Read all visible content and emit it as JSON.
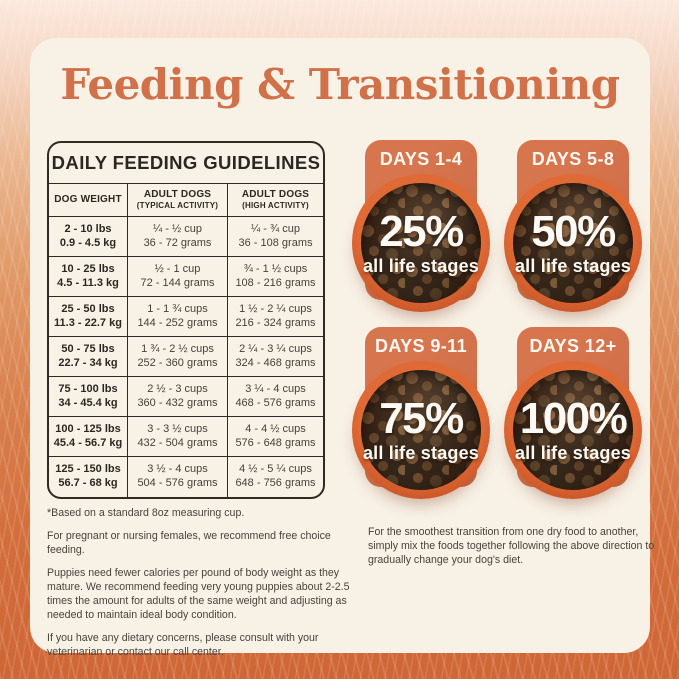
{
  "title": "Feeding & Transitioning",
  "colors": {
    "accent_title": "#d0714a",
    "card_bg": "#f8f1e6",
    "badge_orange": "#d2714a",
    "bowl_rim_orange": "#d85b2d",
    "table_line": "#2e2b27",
    "background_fur": "#d26c3a"
  },
  "guidelines": {
    "title": "DAILY FEEDING GUIDELINES",
    "columns": [
      {
        "label": "DOG WEIGHT",
        "sublabel": ""
      },
      {
        "label": "ADULT DOGS",
        "sublabel": "(TYPICAL ACTIVITY)"
      },
      {
        "label": "ADULT DOGS",
        "sublabel": "(HIGH ACTIVITY)"
      }
    ],
    "rows": [
      [
        "2 - 10 lbs",
        "0.9 - 4.5 kg",
        "¼ - ½ cup",
        "36 - 72 grams",
        "¼ - ¾ cup",
        "36 - 108 grams"
      ],
      [
        "10 - 25 lbs",
        "4.5 - 11.3 kg",
        "½ - 1 cup",
        "72 - 144 grams",
        "¾ - 1 ½ cups",
        "108 - 216 grams"
      ],
      [
        "25 - 50 lbs",
        "11.3 - 22.7 kg",
        "1 - 1 ¾ cups",
        "144 - 252 grams",
        "1 ½ - 2 ¼ cups",
        "216 - 324 grams"
      ],
      [
        "50 - 75 lbs",
        "22.7 - 34 kg",
        "1 ¾ - 2 ½ cups",
        "252 - 360 grams",
        "2 ¼ - 3 ¼ cups",
        "324 - 468 grams"
      ],
      [
        "75 - 100 lbs",
        "34 - 45.4 kg",
        "2 ½ - 3 cups",
        "360 - 432 grams",
        "3 ¼ - 4 cups",
        "468 - 576 grams"
      ],
      [
        "100 - 125 lbs",
        "45.4 - 56.7 kg",
        "3 - 3 ½ cups",
        "432 - 504 grams",
        "4 - 4 ½ cups",
        "576 - 648 grams"
      ],
      [
        "125 - 150 lbs",
        "56.7 - 68 kg",
        "3 ½ - 4 cups",
        "504 - 576 grams",
        "4 ½ - 5 ¼ cups",
        "648 - 756 grams"
      ]
    ]
  },
  "notes": [
    "*Based on a standard 8oz measuring cup.",
    "For pregnant or nursing females, we recommend free choice feeding.",
    "Puppies need fewer calories per pound of body weight as they mature. We recommend feeding very young puppies about 2-2.5 times the amount for adults of the same weight and adjusting as needed to maintain ideal body condition.",
    "If you have any dietary concerns, please consult with your veterinarian or contact our call center."
  ],
  "transition": {
    "steps": [
      {
        "days": "DAYS 1-4",
        "percent": "25%",
        "label": "all life stages"
      },
      {
        "days": "DAYS 5-8",
        "percent": "50%",
        "label": "all life stages"
      },
      {
        "days": "DAYS 9-11",
        "percent": "75%",
        "label": "all life stages"
      },
      {
        "days": "DAYS 12+",
        "percent": "100%",
        "label": "all life stages"
      }
    ],
    "note": "For the smoothest transition from one dry food to another, simply mix the foods together following the above direction to gradually change your dog's diet."
  }
}
